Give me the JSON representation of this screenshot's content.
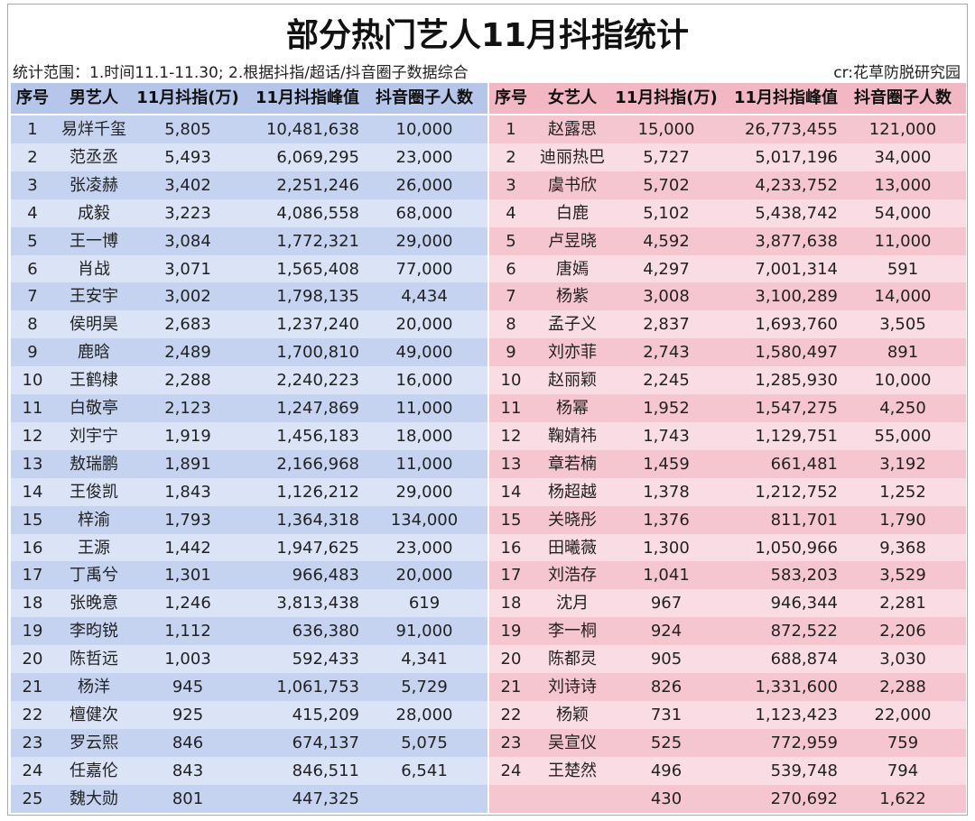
{
  "header": {
    "title": "部分热门艺人11月抖指统计",
    "scope": "统计范围：1.时间11.1-11.30; 2.根据抖指/超话/抖音圈子数据综合",
    "credit": "cr:花草防脱研究园"
  },
  "male": {
    "columns": [
      "序号",
      "男艺人",
      "11月抖指(万)",
      "11月抖指峰值",
      "抖音圈子人数"
    ],
    "rows": [
      [
        "1",
        "易烊千玺",
        "5,805",
        "10,481,638",
        "10,000"
      ],
      [
        "2",
        "范丞丞",
        "5,493",
        "6,069,295",
        "23,000"
      ],
      [
        "3",
        "张凌赫",
        "3,402",
        "2,251,246",
        "26,000"
      ],
      [
        "4",
        "成毅",
        "3,223",
        "4,086,558",
        "68,000"
      ],
      [
        "5",
        "王一博",
        "3,084",
        "1,772,321",
        "29,000"
      ],
      [
        "6",
        "肖战",
        "3,071",
        "1,565,408",
        "77,000"
      ],
      [
        "7",
        "王安宇",
        "3,002",
        "1,798,135",
        "4,434"
      ],
      [
        "8",
        "侯明昊",
        "2,683",
        "1,237,240",
        "20,000"
      ],
      [
        "9",
        "鹿晗",
        "2,489",
        "1,700,810",
        "49,000"
      ],
      [
        "10",
        "王鹤棣",
        "2,288",
        "2,240,223",
        "16,000"
      ],
      [
        "11",
        "白敬亭",
        "2,123",
        "1,247,869",
        "11,000"
      ],
      [
        "12",
        "刘宇宁",
        "1,919",
        "1,456,183",
        "18,000"
      ],
      [
        "13",
        "敖瑞鹏",
        "1,891",
        "2,166,968",
        "11,000"
      ],
      [
        "14",
        "王俊凯",
        "1,843",
        "1,126,212",
        "29,000"
      ],
      [
        "15",
        "梓渝",
        "1,793",
        "1,364,318",
        "134,000"
      ],
      [
        "16",
        "王源",
        "1,442",
        "1,947,625",
        "23,000"
      ],
      [
        "17",
        "丁禹兮",
        "1,301",
        "966,483",
        "20,000"
      ],
      [
        "18",
        "张晚意",
        "1,246",
        "3,813,438",
        "619"
      ],
      [
        "19",
        "李昀锐",
        "1,112",
        "636,380",
        "91,000"
      ],
      [
        "20",
        "陈哲远",
        "1,003",
        "592,433",
        "4,341"
      ],
      [
        "21",
        "杨洋",
        "945",
        "1,061,753",
        "5,729"
      ],
      [
        "22",
        "檀健次",
        "925",
        "415,209",
        "28,000"
      ],
      [
        "23",
        "罗云熙",
        "846",
        "674,137",
        "5,075"
      ],
      [
        "24",
        "任嘉伦",
        "843",
        "846,511",
        "6,541"
      ],
      [
        "25",
        "魏大勋",
        "801",
        "447,325",
        null
      ]
    ]
  },
  "female": {
    "columns": [
      "序号",
      "女艺人",
      "11月抖指(万)",
      "11月抖指峰值",
      "抖音圈子人数"
    ],
    "rows": [
      [
        "1",
        "赵露思",
        "15,000",
        "26,773,455",
        "121,000"
      ],
      [
        "2",
        "迪丽热巴",
        "5,727",
        "5,017,196",
        "34,000"
      ],
      [
        "3",
        "虞书欣",
        "5,702",
        "4,233,752",
        "13,000"
      ],
      [
        "4",
        "白鹿",
        "5,102",
        "5,438,742",
        "54,000"
      ],
      [
        "5",
        "卢昱晓",
        "4,592",
        "3,877,638",
        "11,000"
      ],
      [
        "6",
        "唐嫣",
        "4,297",
        "7,001,314",
        "591"
      ],
      [
        "7",
        "杨紫",
        "3,008",
        "3,100,289",
        "14,000"
      ],
      [
        "8",
        "孟子义",
        "2,837",
        "1,693,760",
        "3,505"
      ],
      [
        "9",
        "刘亦菲",
        "2,743",
        "1,580,497",
        "891"
      ],
      [
        "10",
        "赵丽颖",
        "2,245",
        "1,285,930",
        "10,000"
      ],
      [
        "11",
        "杨幂",
        "1,952",
        "1,547,275",
        "4,250"
      ],
      [
        "12",
        "鞠婧祎",
        "1,743",
        "1,129,751",
        "55,000"
      ],
      [
        "13",
        "章若楠",
        "1,459",
        "661,481",
        "3,192"
      ],
      [
        "14",
        "杨超越",
        "1,378",
        "1,212,752",
        "1,252"
      ],
      [
        "15",
        "关晓彤",
        "1,376",
        "811,701",
        "1,790"
      ],
      [
        "16",
        "田曦薇",
        "1,300",
        "1,050,966",
        "9,368"
      ],
      [
        "17",
        "刘浩存",
        "1,041",
        "583,203",
        "3,529"
      ],
      [
        "18",
        "沈月",
        "967",
        "946,344",
        "2,281"
      ],
      [
        "19",
        "李一桐",
        "924",
        "872,522",
        "2,206"
      ],
      [
        "20",
        "陈都灵",
        "905",
        "688,874",
        "3,030"
      ],
      [
        "21",
        "刘诗诗",
        "826",
        "1,331,600",
        "2,288"
      ],
      [
        "22",
        "杨颖",
        "731",
        "1,123,423",
        "22,000"
      ],
      [
        "23",
        "吴宣仪",
        "525",
        "772,959",
        "759"
      ],
      [
        "24",
        "王楚然",
        "496",
        "539,748",
        "794"
      ],
      [
        null,
        null,
        "430",
        "270,692",
        "1,622"
      ]
    ]
  }
}
